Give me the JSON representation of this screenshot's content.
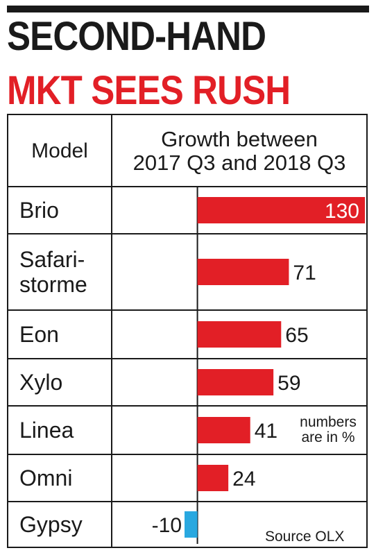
{
  "headline": {
    "line1": "SECOND-HAND",
    "line2": "MKT SEES RUSH"
  },
  "table": {
    "col_model_header": "Model",
    "col_growth_header_line1": "Growth between",
    "col_growth_header_line2": "2017 Q3 and 2018 Q3"
  },
  "models": [
    {
      "label_line1": "Brio",
      "label_line2": ""
    },
    {
      "label_line1": "Safari-",
      "label_line2": "storme"
    },
    {
      "label_line1": "Eon",
      "label_line2": ""
    },
    {
      "label_line1": "Xylo",
      "label_line2": ""
    },
    {
      "label_line1": "Linea",
      "label_line2": ""
    },
    {
      "label_line1": "Omni",
      "label_line2": ""
    },
    {
      "label_line1": "Gypsy",
      "label_line2": ""
    }
  ],
  "note": "numbers are in %",
  "source": "Source OLX",
  "colors": {
    "positive": "#e21f26",
    "negative": "#29a8e0",
    "headline_black": "#1a1a1a",
    "headline_red": "#e21f26"
  },
  "chart_data": {
    "type": "bar",
    "orientation": "horizontal",
    "categories": [
      "Brio",
      "Safari-storme",
      "Eon",
      "Xylo",
      "Linea",
      "Omni",
      "Gypsy"
    ],
    "values": [
      130,
      71,
      65,
      59,
      41,
      24,
      -10
    ],
    "unit": "%",
    "xlim": [
      -66,
      130
    ]
  }
}
